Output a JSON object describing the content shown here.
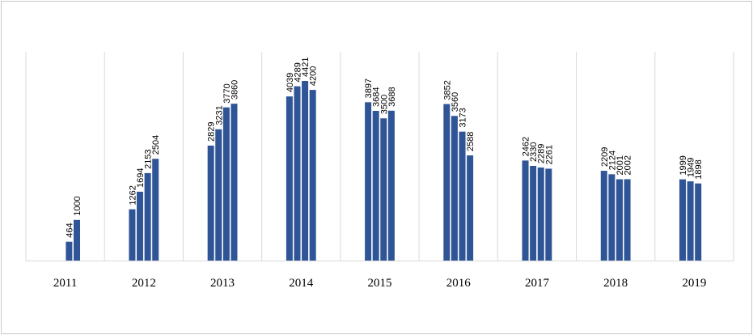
{
  "chart_data": {
    "type": "bar",
    "title": "",
    "xlabel": "",
    "ylabel": "",
    "ylim": [
      0,
      5000
    ],
    "grid": false,
    "legend": "none",
    "bar_color": "#2f5597",
    "separator_color": "#d9d9d9",
    "categories": [
      "2011",
      "2012",
      "2013",
      "2014",
      "2015",
      "2016",
      "2017",
      "2018",
      "2019"
    ],
    "groups": [
      {
        "year": "2011",
        "values": [
          464,
          1000
        ]
      },
      {
        "year": "2012",
        "values": [
          1262,
          1694,
          2153,
          2504
        ]
      },
      {
        "year": "2013",
        "values": [
          2829,
          3231,
          3770,
          3860
        ]
      },
      {
        "year": "2014",
        "values": [
          4039,
          4289,
          4421,
          4200
        ]
      },
      {
        "year": "2015",
        "values": [
          3897,
          3684,
          3500,
          3688
        ]
      },
      {
        "year": "2016",
        "values": [
          3852,
          3560,
          3173,
          2588
        ]
      },
      {
        "year": "2017",
        "values": [
          2462,
          2330,
          2289,
          2261
        ]
      },
      {
        "year": "2018",
        "values": [
          2209,
          2124,
          2001,
          2002
        ]
      },
      {
        "year": "2019",
        "values": [
          1999,
          1949,
          1898
        ]
      }
    ]
  }
}
